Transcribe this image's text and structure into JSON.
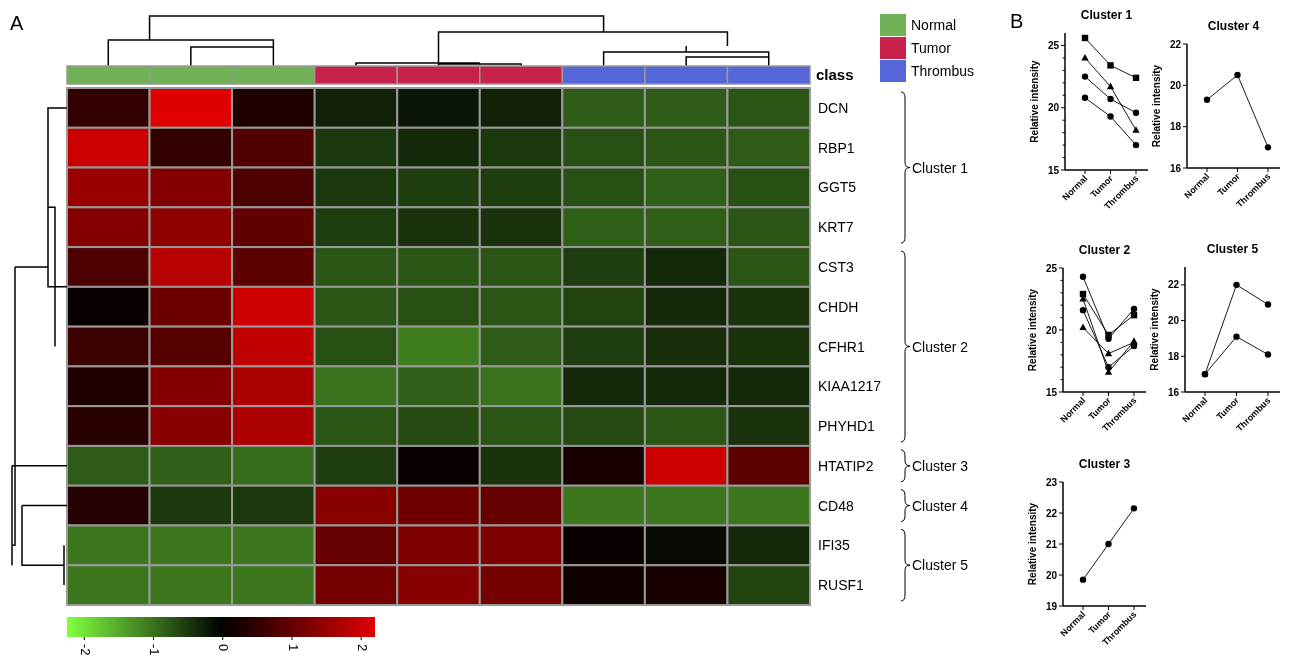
{
  "chart_data": [
    {
      "type": "heatmap",
      "categories": [
        null,
        null,
        null,
        null,
        null,
        null,
        null,
        null,
        null
      ],
      "y_categories": [
        null,
        null,
        null,
        null,
        null,
        null,
        null,
        null,
        null,
        null,
        null,
        null,
        null
      ],
      "y2_categories": [
        "DCN",
        "RBP1",
        "GGT5",
        "KRT7",
        "CST3",
        "CHDH",
        "CFHR1",
        "KIAA1217",
        "PHYHD1",
        "HTATIP2",
        "CD48",
        "IFI35",
        "RUSF1"
      ],
      "cells": [
        [
          0.5,
          2.2,
          0.3,
          -0.3,
          -0.2,
          -0.3,
          -0.8,
          -0.8,
          -0.75
        ],
        [
          2.0,
          0.5,
          0.8,
          -0.5,
          -0.35,
          -0.5,
          -0.7,
          -0.75,
          -0.8
        ],
        [
          1.5,
          1.3,
          0.75,
          -0.5,
          -0.55,
          -0.55,
          -0.7,
          -0.85,
          -0.7
        ],
        [
          1.3,
          1.4,
          0.95,
          -0.55,
          -0.45,
          -0.45,
          -0.85,
          -0.85,
          -0.75
        ],
        [
          0.75,
          1.8,
          0.9,
          -0.75,
          -0.75,
          -0.75,
          -0.55,
          -0.35,
          -0.75
        ],
        [
          0.1,
          1.05,
          2.0,
          -0.75,
          -0.7,
          -0.75,
          -0.6,
          -0.35,
          -0.45
        ],
        [
          0.6,
          0.85,
          1.9,
          -0.7,
          -1.1,
          -0.8,
          -0.55,
          -0.4,
          -0.45
        ],
        [
          0.3,
          1.3,
          1.7,
          -1.0,
          -0.85,
          -1.0,
          -0.35,
          -0.35,
          -0.35
        ],
        [
          0.4,
          1.35,
          1.7,
          -0.75,
          -0.65,
          -0.75,
          -0.65,
          -0.75,
          -0.45
        ],
        [
          -0.8,
          -0.85,
          -0.95,
          -0.55,
          0.1,
          -0.45,
          0.25,
          2.0,
          0.9
        ],
        [
          0.35,
          -0.5,
          -0.5,
          1.35,
          1.1,
          1.0,
          -1.05,
          -1.05,
          -1.05
        ],
        [
          -1.05,
          -1.05,
          -1.05,
          1.0,
          1.25,
          1.25,
          0.1,
          -0.1,
          -0.35
        ],
        [
          -1.05,
          -1.05,
          -1.05,
          1.15,
          1.35,
          1.15,
          0.15,
          0.25,
          -0.6
        ]
      ],
      "clim": [
        -2.25,
        2.2
      ],
      "cticks": [
        -2,
        -1,
        0,
        1,
        2
      ],
      "annotations": [
        "A",
        "Cluster 1",
        "Cluster 2",
        "Cluster 3",
        "Cluster 4",
        "Cluster 5"
      ]
    },
    {
      "type": "other",
      "categories": [
        "Normal",
        "Tumor",
        "Thrombus"
      ],
      "colors": [
        "#70b255",
        "#c8214c",
        "#5566d8"
      ],
      "legend_title": "class"
    },
    {
      "type": "line",
      "title": "Cluster 1",
      "ylabel": "Relative intensity",
      "categories": [
        "Normal",
        "Tumor",
        "Thrombus"
      ],
      "ylim": [
        15,
        26
      ],
      "yticks": [
        15,
        {
          "value": 16,
          "label": null
        },
        {
          "value": 17,
          "label": null
        },
        {
          "value": 18,
          "label": null
        },
        {
          "value": 19,
          "label": null
        },
        20,
        {
          "value": 21,
          "label": null
        },
        {
          "value": 22,
          "label": null
        },
        {
          "value": 23,
          "label": null
        },
        {
          "value": 24,
          "label": null
        },
        25
      ],
      "series": [
        {
          "color": "#000000",
          "marker": "square",
          "values": [
            25.6,
            23.4,
            22.4
          ]
        },
        {
          "color": "#000000",
          "marker": "triangle",
          "values": [
            24.0,
            21.7,
            18.2
          ]
        },
        {
          "color": "#000000",
          "marker": "circle",
          "values": [
            22.5,
            20.7,
            19.6
          ]
        },
        {
          "color": "#000000",
          "marker": "circle",
          "values": [
            20.8,
            19.3,
            17.0
          ]
        }
      ],
      "annotations": [
        "B"
      ]
    },
    {
      "type": "line",
      "title": "Cluster 4",
      "ylabel": "Relative intensity",
      "categories": [
        "Normal",
        "Tumor",
        "Thrombus"
      ],
      "ylim": [
        16,
        22
      ],
      "yticks": [
        16,
        18,
        20,
        22
      ],
      "series": [
        {
          "color": "#000000",
          "marker": "circle",
          "values": [
            19.3,
            20.5,
            17.0
          ]
        }
      ]
    },
    {
      "type": "line",
      "title": "Cluster 2",
      "ylabel": "Relative intensity",
      "categories": [
        "Normal",
        "Tumor",
        "Thrombus"
      ],
      "ylim": [
        15,
        25
      ],
      "yticks": [
        15,
        {
          "value": 16,
          "label": null
        },
        {
          "value": 17,
          "label": null
        },
        {
          "value": 18,
          "label": null
        },
        {
          "value": 19,
          "label": null
        },
        20,
        {
          "value": 21,
          "label": null
        },
        {
          "value": 22,
          "label": null
        },
        {
          "value": 23,
          "label": null
        },
        {
          "value": 24,
          "label": null
        },
        25
      ],
      "series": [
        {
          "color": "#000000",
          "marker": "circle",
          "values": [
            24.3,
            19.3,
            21.7
          ]
        },
        {
          "color": "#000000",
          "marker": "square",
          "values": [
            22.9,
            19.6,
            21.2
          ]
        },
        {
          "color": "#000000",
          "marker": "triangle",
          "values": [
            22.5,
            16.6,
            19.1
          ]
        },
        {
          "color": "#000000",
          "marker": "circle",
          "values": [
            21.6,
            17.0,
            18.7
          ]
        },
        {
          "color": "#000000",
          "marker": "triangle",
          "values": [
            20.2,
            18.1,
            19.0
          ]
        }
      ]
    },
    {
      "type": "line",
      "title": "Cluster 5",
      "ylabel": "Relative intensity",
      "categories": [
        "Normal",
        "Tumor",
        "Thrombus"
      ],
      "ylim": [
        16,
        23
      ],
      "yticks": [
        16,
        18,
        20,
        22
      ],
      "series": [
        {
          "color": "#000000",
          "marker": "circle",
          "values": [
            17.0,
            22.0,
            20.9
          ]
        },
        {
          "color": "#000000",
          "marker": "circle",
          "values": [
            17.0,
            19.1,
            18.1
          ]
        }
      ]
    },
    {
      "type": "line",
      "title": "Cluster 3",
      "ylabel": "Relative intensity",
      "categories": [
        "Normal",
        "Tumor",
        "Thrombus"
      ],
      "ylim": [
        19,
        23
      ],
      "yticks": [
        19,
        20,
        21,
        22,
        23
      ],
      "series": [
        {
          "color": "#000000",
          "marker": "circle",
          "values": [
            19.85,
            21.0,
            22.15
          ]
        }
      ]
    }
  ]
}
